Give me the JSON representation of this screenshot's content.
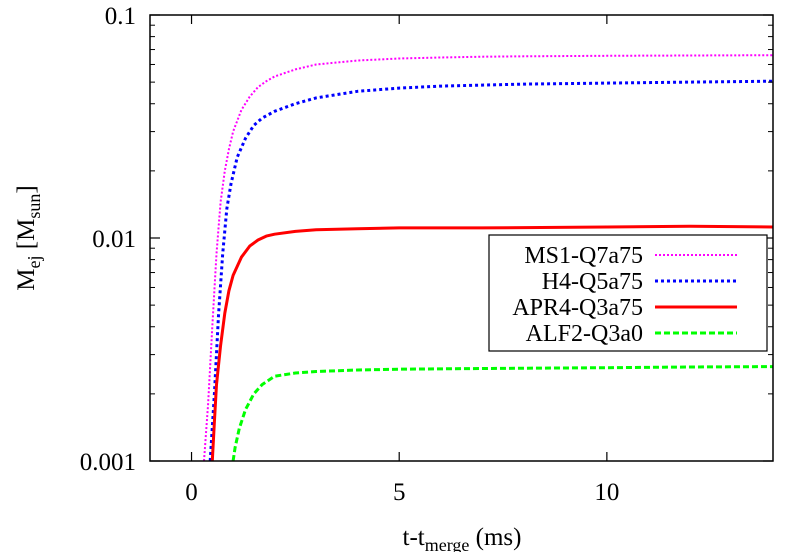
{
  "chart_data": {
    "type": "line",
    "xlabel": {
      "main": "t-t",
      "sub": "merge",
      "tail": " (ms)"
    },
    "ylabel": {
      "main": "M",
      "sub1": "ej",
      "mid": " [M",
      "sub2": "sun",
      "tail": "]"
    },
    "xlim": [
      -1,
      14
    ],
    "ylim": [
      0.001,
      0.1
    ],
    "yscale": "log",
    "grid": false,
    "legend_position": "center-right",
    "x_ticks": [
      {
        "value": 0,
        "label": "0"
      },
      {
        "value": 5,
        "label": "5"
      },
      {
        "value": 10,
        "label": "10"
      }
    ],
    "y_ticks": [
      {
        "value": 0.001,
        "label": "0.001"
      },
      {
        "value": 0.01,
        "label": "0.01"
      },
      {
        "value": 0.1,
        "label": "0.1"
      }
    ],
    "series": [
      {
        "name": "MS1-Q7a75",
        "color": "#ff00ff",
        "dash": "2,2",
        "width": 2,
        "points": [
          [
            0.3,
            0.001
          ],
          [
            0.4,
            0.0018
          ],
          [
            0.5,
            0.004
          ],
          [
            0.6,
            0.0085
          ],
          [
            0.7,
            0.0145
          ],
          [
            0.8,
            0.02
          ],
          [
            0.9,
            0.025
          ],
          [
            1.0,
            0.03
          ],
          [
            1.2,
            0.0375
          ],
          [
            1.4,
            0.043
          ],
          [
            1.6,
            0.0475
          ],
          [
            1.8,
            0.0505
          ],
          [
            2.0,
            0.053
          ],
          [
            2.5,
            0.057
          ],
          [
            3.0,
            0.06
          ],
          [
            4.0,
            0.0625
          ],
          [
            5.0,
            0.0638
          ],
          [
            6.0,
            0.0645
          ],
          [
            7.0,
            0.065
          ],
          [
            8.0,
            0.0653
          ],
          [
            10.0,
            0.0656
          ],
          [
            12.0,
            0.0658
          ],
          [
            14.0,
            0.066
          ]
        ]
      },
      {
        "name": "H4-Q5a75",
        "color": "#0000ff",
        "dash": "3,3",
        "width": 3,
        "points": [
          [
            0.45,
            0.001
          ],
          [
            0.55,
            0.002
          ],
          [
            0.65,
            0.0045
          ],
          [
            0.75,
            0.0085
          ],
          [
            0.85,
            0.0135
          ],
          [
            0.95,
            0.0175
          ],
          [
            1.1,
            0.023
          ],
          [
            1.3,
            0.028
          ],
          [
            1.5,
            0.032
          ],
          [
            1.7,
            0.0345
          ],
          [
            2.0,
            0.037
          ],
          [
            2.5,
            0.04
          ],
          [
            3.0,
            0.0425
          ],
          [
            4.0,
            0.0455
          ],
          [
            5.0,
            0.047
          ],
          [
            6.0,
            0.048
          ],
          [
            7.0,
            0.0485
          ],
          [
            8.0,
            0.049
          ],
          [
            10.0,
            0.0495
          ],
          [
            12.0,
            0.05
          ],
          [
            14.0,
            0.0505
          ]
        ]
      },
      {
        "name": "APR4-Q3a75",
        "color": "#ff0000",
        "dash": "",
        "width": 3,
        "points": [
          [
            0.5,
            0.001
          ],
          [
            0.55,
            0.0015
          ],
          [
            0.6,
            0.0022
          ],
          [
            0.7,
            0.0033
          ],
          [
            0.8,
            0.0046
          ],
          [
            0.9,
            0.0058
          ],
          [
            1.0,
            0.0068
          ],
          [
            1.2,
            0.0082
          ],
          [
            1.4,
            0.0092
          ],
          [
            1.6,
            0.0098
          ],
          [
            1.8,
            0.0102
          ],
          [
            2.0,
            0.0104
          ],
          [
            2.5,
            0.0107
          ],
          [
            3.0,
            0.0109
          ],
          [
            4.0,
            0.011
          ],
          [
            5.0,
            0.0111
          ],
          [
            7.0,
            0.0111
          ],
          [
            10.0,
            0.0112
          ],
          [
            12.0,
            0.0113
          ],
          [
            14.0,
            0.0112
          ]
        ]
      },
      {
        "name": "ALF2-Q3a0",
        "color": "#00ff00",
        "dash": "6,3",
        "width": 3,
        "points": [
          [
            1.0,
            0.001
          ],
          [
            1.05,
            0.00115
          ],
          [
            1.15,
            0.0014
          ],
          [
            1.3,
            0.0017
          ],
          [
            1.5,
            0.002
          ],
          [
            1.7,
            0.0022
          ],
          [
            2.0,
            0.0024
          ],
          [
            2.5,
            0.00248
          ],
          [
            3.0,
            0.00252
          ],
          [
            4.0,
            0.00256
          ],
          [
            5.0,
            0.00258
          ],
          [
            7.0,
            0.0026
          ],
          [
            10.0,
            0.00262
          ],
          [
            12.0,
            0.00264
          ],
          [
            14.0,
            0.00265
          ]
        ]
      }
    ]
  }
}
